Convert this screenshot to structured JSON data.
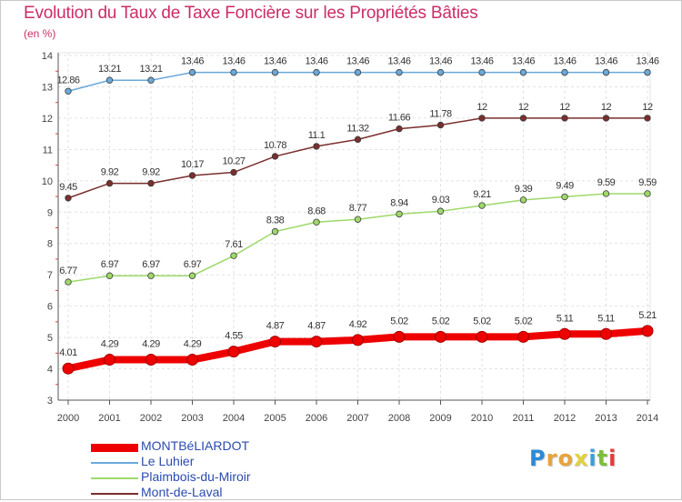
{
  "logo": {
    "chars": [
      {
        "c": "P",
        "color": "#2b8ad8"
      },
      {
        "c": "r",
        "color": "#e8a43a"
      },
      {
        "c": "o",
        "color": "#e8a43a"
      },
      {
        "c": "x",
        "color": "#e0d23a"
      },
      {
        "c": "i",
        "color": "#3a9fd8"
      },
      {
        "c": "t",
        "color": "#7bbf3a"
      },
      {
        "c": "i",
        "color": "#e83a3a"
      }
    ]
  },
  "chart_data": {
    "type": "line",
    "title": "Evolution du Taux de Taxe Foncière sur les Propriétés Bâties",
    "subtitle": "(en %)",
    "x": [
      "2000",
      "2001",
      "2002",
      "2003",
      "2004",
      "2005",
      "2006",
      "2007",
      "2008",
      "2009",
      "2010",
      "2011",
      "2012",
      "2013",
      "2014"
    ],
    "yticks": [
      "3",
      "4",
      "5",
      "6",
      "7",
      "8",
      "9",
      "10",
      "11",
      "12",
      "13",
      "14"
    ],
    "ylim": [
      3,
      14
    ],
    "grid": true,
    "legend_position": "bottom-left",
    "series": [
      {
        "name": "MONTBéLIARDOT",
        "color": "#ee0000",
        "emphasis": true,
        "values": [
          4.01,
          4.29,
          4.29,
          4.29,
          4.55,
          4.87,
          4.87,
          4.92,
          5.02,
          5.02,
          5.02,
          5.02,
          5.11,
          5.11,
          5.21
        ],
        "labels": [
          "4.01",
          "4.29",
          "4.29",
          "4.29",
          "4.55",
          "4.87",
          "4.87",
          "4.92",
          "5.02",
          "5.02",
          "5.02",
          "5.02",
          "5.11",
          "5.11",
          "5.21"
        ]
      },
      {
        "name": "Le Luhier",
        "color": "#6aa9da",
        "emphasis": false,
        "values": [
          12.86,
          13.21,
          13.21,
          13.46,
          13.46,
          13.46,
          13.46,
          13.46,
          13.46,
          13.46,
          13.46,
          13.46,
          13.46,
          13.46,
          13.46
        ],
        "labels": [
          "12.86",
          "13.21",
          "13.21",
          "13.46",
          "13.46",
          "13.46",
          "13.46",
          "13.46",
          "13.46",
          "13.46",
          "13.46",
          "13.46",
          "13.46",
          "13.46",
          "13.46"
        ]
      },
      {
        "name": "Plaimbois-du-Miroir",
        "color": "#9ed96a",
        "emphasis": false,
        "values": [
          6.77,
          6.97,
          6.97,
          6.97,
          7.61,
          8.38,
          8.68,
          8.77,
          8.94,
          9.03,
          9.21,
          9.39,
          9.49,
          9.59,
          9.59
        ],
        "labels": [
          "6.77",
          "6.97",
          "6.97",
          "6.97",
          "7.61",
          "8.38",
          "8.68",
          "8.77",
          "8.94",
          "9.03",
          "9.21",
          "9.39",
          "9.49",
          "9.59",
          "9.59"
        ]
      },
      {
        "name": "Mont-de-Laval",
        "color": "#7a2e2e",
        "emphasis": false,
        "values": [
          9.45,
          9.92,
          9.92,
          10.17,
          10.27,
          10.78,
          11.1,
          11.32,
          11.66,
          11.78,
          12,
          12,
          12,
          12,
          12
        ],
        "labels": [
          "9.45",
          "9.92",
          "9.92",
          "10.17",
          "10.27",
          "10.78",
          "11.1",
          "11.32",
          "11.66",
          "11.78",
          "12",
          "12",
          "12",
          "12",
          "12"
        ]
      }
    ]
  }
}
